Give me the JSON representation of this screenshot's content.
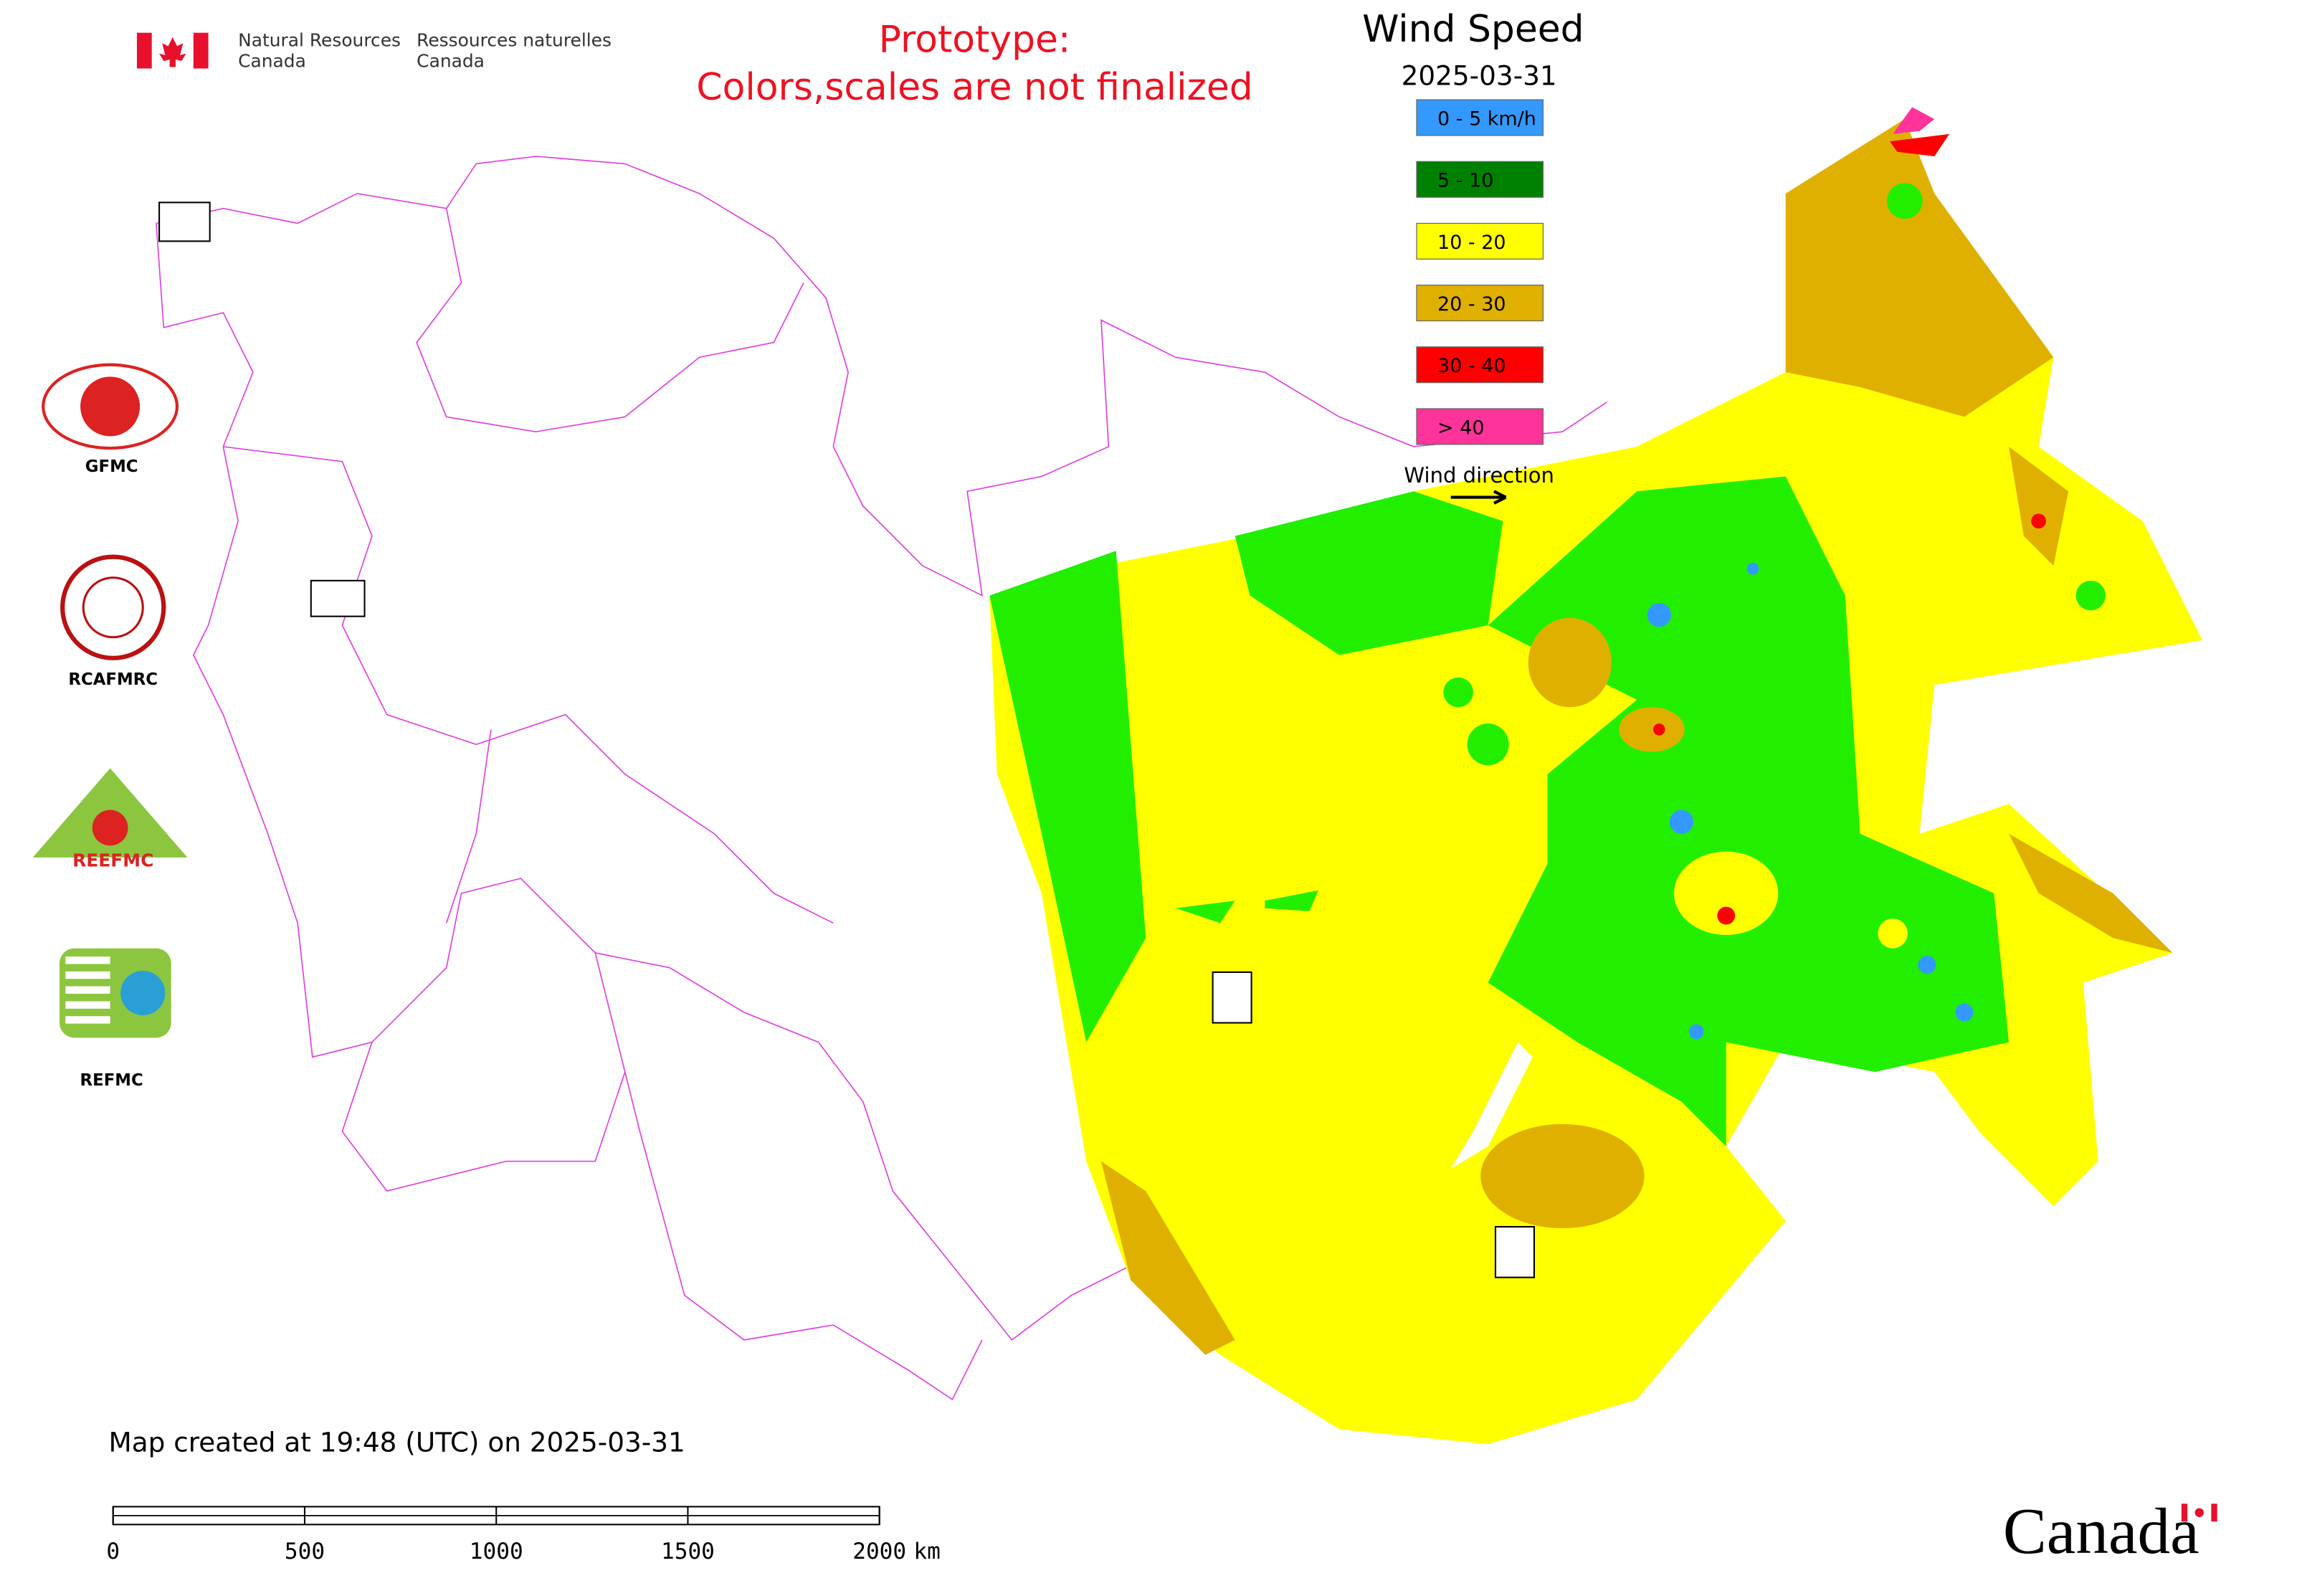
{
  "header": {
    "en_line1": "Natural Resources",
    "en_line2": "Canada",
    "fr_line1": "Ressources naturelles",
    "fr_line2": "Canada"
  },
  "notice": {
    "line1": "Prototype:",
    "line2": "Colors,scales are not finalized"
  },
  "legend": {
    "title": "Wind Speed",
    "date": "2025-03-31",
    "items": [
      {
        "label": "0 - 5 km/h",
        "color": "#3399ff"
      },
      {
        "label": "5 - 10",
        "color": "#008000"
      },
      {
        "label": "10 - 20",
        "color": "#ffff00"
      },
      {
        "label": "20 - 30",
        "color": "#e0b000"
      },
      {
        "label": "30 - 40",
        "color": "#ff0000"
      },
      {
        "label": "> 40",
        "color": "#ff3399"
      }
    ],
    "wind_direction": "Wind direction"
  },
  "logos": [
    {
      "label": "GFMC"
    },
    {
      "label": "RCAFMRC"
    },
    {
      "label": "REEFMC"
    },
    {
      "label": "REFMC"
    }
  ],
  "footer": {
    "created": "Map created at 19:48 (UTC) on 2025-03-31",
    "scale_ticks": [
      0,
      500,
      1000,
      1500,
      2000
    ],
    "scale_unit": "km",
    "wordmark": "Canada"
  }
}
